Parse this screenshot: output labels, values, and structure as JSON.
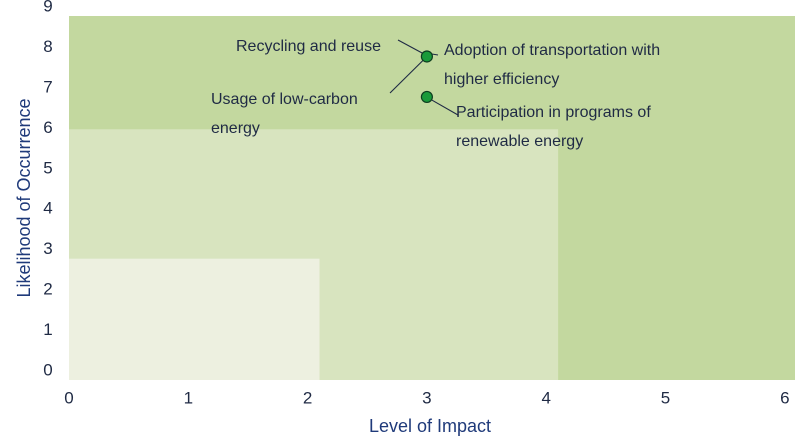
{
  "chart_data": {
    "type": "scatter",
    "title": "",
    "xlabel": "Level of Impact",
    "ylabel": "Likelihood of Occurrence",
    "xlim": [
      0,
      6
    ],
    "ylim": [
      0,
      9
    ],
    "x_ticks": [
      "0",
      "1",
      "2",
      "3",
      "4",
      "5",
      "6"
    ],
    "y_ticks": [
      "0",
      "1",
      "2",
      "3",
      "4",
      "5",
      "6",
      "7",
      "8",
      "9"
    ],
    "grid": false,
    "legend": "none",
    "background_regions": [
      {
        "name": "low-risk-zone",
        "x": [
          0,
          2.1
        ],
        "y": [
          0,
          3
        ],
        "color": "#edf0e0"
      },
      {
        "name": "medium-risk-zone",
        "x": [
          0,
          4.1
        ],
        "y": [
          0,
          6.2
        ],
        "color": "#d8e4bf"
      },
      {
        "name": "high-risk-zone",
        "x": [
          0,
          6.1
        ],
        "y": [
          0,
          9.1
        ],
        "color": "#c3d89f"
      }
    ],
    "points": [
      {
        "x": 3,
        "y": 8,
        "labels": [
          "Recycling and reuse",
          "Adoption of transportation with higher efficiency"
        ]
      },
      {
        "x": 3,
        "y": 7,
        "labels": [
          "Usage of low-carbon energy",
          "Participation in programs of renewable energy"
        ]
      }
    ],
    "annotations": [
      {
        "lines": [
          "Recycling and reuse"
        ]
      },
      {
        "lines": [
          "Adoption of transportation with",
          "higher efficiency"
        ]
      },
      {
        "lines": [
          "Usage of low-carbon",
          "energy"
        ]
      },
      {
        "lines": [
          "Participation in programs of",
          "renewable energy"
        ]
      }
    ],
    "colors": {
      "point_fill": "#1a9a3a",
      "point_stroke": "#0d3d1f",
      "axis_label": "#1f3a7a",
      "text": "#1f2a44",
      "leader_line": "#1f2a44"
    }
  }
}
